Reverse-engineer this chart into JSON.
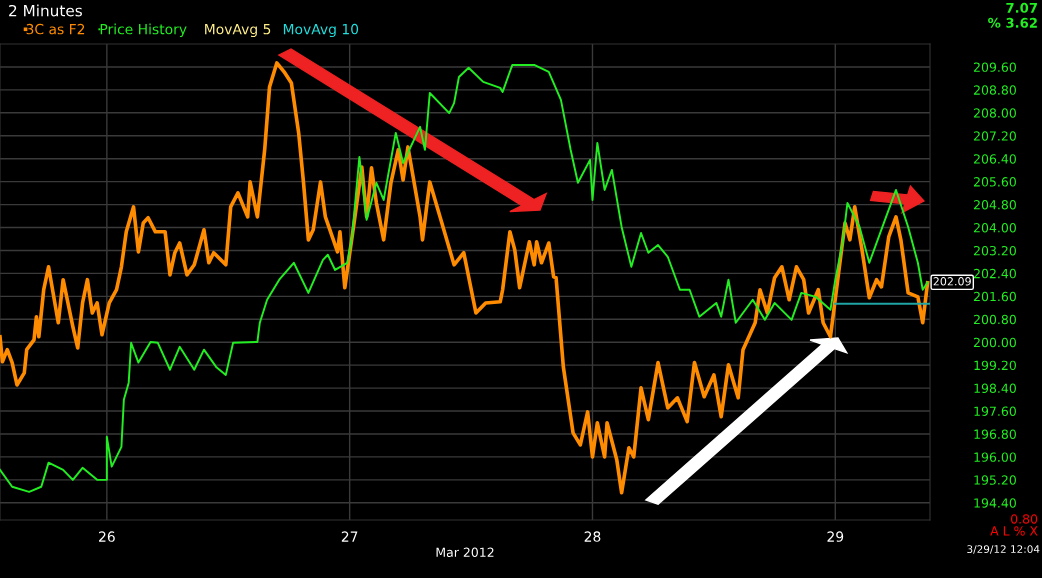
{
  "chart_data": {
    "type": "line",
    "xlabel": "Mar 2012",
    "legend": "top left",
    "grid": true,
    "marker": "none",
    "line_style": "solid",
    "xlim": [
      25.56,
      29.39
    ],
    "xticks": [
      26,
      27,
      28,
      29
    ],
    "ylim": [
      193.8,
      210.4
    ],
    "yticks": [
      {
        "value": 194.4,
        "label": "194.40"
      },
      {
        "value": 195.2,
        "label": "195.20"
      },
      {
        "value": 196.0,
        "label": "196.00"
      },
      {
        "value": 196.8,
        "label": "196.80"
      },
      {
        "value": 197.6,
        "label": "197.60"
      },
      {
        "value": 198.4,
        "label": "198.40"
      },
      {
        "value": 199.2,
        "label": "199.20"
      },
      {
        "value": 200.0,
        "label": "200.00"
      },
      {
        "value": 200.8,
        "label": "200.80"
      },
      {
        "value": 201.6,
        "label": "201.60"
      },
      {
        "value": 202.4,
        "label": "202.40"
      },
      {
        "value": 203.2,
        "label": "203.20"
      },
      {
        "value": 204.0,
        "label": "204.00"
      },
      {
        "value": 204.8,
        "label": "204.80"
      },
      {
        "value": 205.6,
        "label": "205.60"
      },
      {
        "value": 206.4,
        "label": "206.40"
      },
      {
        "value": 207.2,
        "label": "207.20"
      },
      {
        "value": 208.0,
        "label": "208.00"
      },
      {
        "value": 208.8,
        "label": "208.80"
      },
      {
        "value": 209.6,
        "label": "209.60"
      }
    ],
    "series": [
      {
        "name": "3C as F2",
        "color": "#ff8c00",
        "x": [
          25.56,
          25.57,
          25.59,
          25.61,
          25.63,
          25.66,
          25.67,
          25.7,
          25.71,
          25.72,
          25.74,
          25.76,
          25.8,
          25.82,
          25.86,
          25.88,
          25.9,
          25.92,
          25.94,
          25.96,
          25.98,
          26.01,
          26.04,
          26.06,
          26.08,
          26.11,
          26.13,
          26.15,
          26.17,
          26.2,
          26.24,
          26.26,
          26.28,
          26.3,
          26.33,
          26.36,
          26.4,
          26.42,
          26.44,
          26.49,
          26.51,
          26.54,
          26.58,
          26.59,
          26.62,
          26.65,
          26.67,
          26.7,
          26.73,
          26.76,
          26.79,
          26.81,
          26.83,
          26.85,
          26.88,
          26.9,
          26.95,
          26.96,
          26.98,
          27.02,
          27.05,
          27.07,
          27.09,
          27.11,
          27.14,
          27.17,
          27.2,
          27.22,
          27.24,
          27.29,
          27.3,
          27.33,
          27.37,
          27.43,
          27.47,
          27.49,
          27.52,
          27.56,
          27.62,
          27.63,
          27.66,
          27.68,
          27.7,
          27.74,
          27.76,
          27.77,
          27.79,
          27.82,
          27.84,
          27.85,
          27.88,
          27.92,
          27.95,
          27.98,
          28.0,
          28.02,
          28.05,
          28.06,
          28.1,
          28.12,
          28.15,
          28.17,
          28.2,
          28.23,
          28.27,
          28.31,
          28.35,
          28.39,
          28.42,
          28.46,
          28.5,
          28.53,
          28.56,
          28.6,
          28.62,
          28.67,
          28.69,
          28.72,
          28.75,
          28.78,
          28.81,
          28.84,
          28.87,
          28.89,
          28.93,
          28.95,
          28.98,
          29.01,
          29.04,
          29.06,
          29.08,
          29.11,
          29.14,
          29.17,
          29.19,
          29.22,
          29.25,
          29.27,
          29.3,
          29.34,
          29.36,
          29.38
        ],
        "values": [
          200.19,
          199.32,
          199.74,
          199.29,
          198.51,
          198.93,
          199.74,
          200.08,
          200.89,
          200.19,
          201.83,
          202.63,
          200.68,
          202.18,
          200.54,
          199.8,
          201.37,
          202.18,
          201.02,
          201.37,
          200.26,
          201.37,
          201.83,
          202.63,
          203.85,
          204.72,
          203.15,
          204.16,
          204.34,
          203.85,
          203.85,
          202.35,
          203.12,
          203.46,
          202.35,
          202.7,
          203.92,
          202.77,
          203.12,
          202.7,
          204.72,
          205.21,
          204.37,
          205.59,
          204.37,
          206.71,
          208.9,
          209.74,
          209.43,
          209.04,
          207.3,
          205.56,
          203.57,
          203.92,
          205.59,
          204.37,
          203.15,
          203.85,
          201.9,
          204.27,
          206.11,
          204.37,
          206.08,
          204.86,
          203.57,
          205.56,
          206.71,
          205.66,
          206.81,
          204.37,
          203.57,
          205.59,
          204.44,
          202.7,
          203.12,
          202.28,
          201.02,
          201.37,
          201.41,
          201.83,
          203.85,
          203.22,
          201.9,
          203.5,
          202.7,
          203.5,
          202.77,
          203.46,
          202.28,
          202.25,
          199.14,
          196.84,
          196.42,
          197.57,
          196.0,
          197.19,
          196.0,
          197.19,
          195.9,
          194.75,
          196.32,
          196.0,
          198.41,
          197.3,
          199.29,
          197.71,
          198.06,
          197.23,
          199.29,
          198.1,
          198.86,
          197.4,
          199.21,
          198.06,
          199.74,
          200.68,
          201.83,
          201.02,
          202.25,
          202.63,
          201.48,
          202.63,
          202.18,
          201.02,
          201.83,
          200.68,
          200.19,
          202.18,
          204.16,
          203.57,
          204.72,
          203.22,
          201.55,
          202.18,
          201.93,
          203.67,
          204.37,
          203.57,
          201.72,
          201.58,
          200.68,
          202.07
        ]
      },
      {
        "name": "Price History",
        "color": "#22ee22",
        "x": [
          25.56,
          25.61,
          25.68,
          25.73,
          25.76,
          25.82,
          25.86,
          25.9,
          25.96,
          26.0,
          26.0,
          26.02,
          26.06,
          26.07,
          26.09,
          26.1,
          26.13,
          26.18,
          26.21,
          26.26,
          26.3,
          26.36,
          26.4,
          26.45,
          26.49,
          26.52,
          26.62,
          26.63,
          26.66,
          26.71,
          26.77,
          26.83,
          26.89,
          26.91,
          26.94,
          26.99,
          27.01,
          27.02,
          27.04,
          27.07,
          27.11,
          27.14,
          27.19,
          27.22,
          27.29,
          27.31,
          27.33,
          27.41,
          27.43,
          27.45,
          27.49,
          27.55,
          27.62,
          27.63,
          27.67,
          27.76,
          27.82,
          27.87,
          27.91,
          27.94,
          27.99,
          28.0,
          28.02,
          28.05,
          28.08,
          28.12,
          28.16,
          28.2,
          28.23,
          28.27,
          28.31,
          28.36,
          28.4,
          28.44,
          28.51,
          28.53,
          28.56,
          28.59,
          28.66,
          28.71,
          28.75,
          28.82,
          28.86,
          28.92,
          28.98,
          29.0,
          29.03,
          29.05,
          29.1,
          29.14,
          29.2,
          29.25,
          29.3,
          29.34,
          29.36,
          29.38
        ],
        "values": [
          195.55,
          194.96,
          194.78,
          194.96,
          195.8,
          195.55,
          195.2,
          195.62,
          195.2,
          195.2,
          196.7,
          195.66,
          196.35,
          197.99,
          198.59,
          199.98,
          199.29,
          200.01,
          199.98,
          199.04,
          199.84,
          199.04,
          199.74,
          199.14,
          198.86,
          199.98,
          200.01,
          200.68,
          201.48,
          202.18,
          202.77,
          201.72,
          202.87,
          203.05,
          202.52,
          202.77,
          203.67,
          204.62,
          206.46,
          204.27,
          205.56,
          204.96,
          207.3,
          206.25,
          207.51,
          206.71,
          208.69,
          207.99,
          208.34,
          209.25,
          209.57,
          209.08,
          208.87,
          208.73,
          209.67,
          209.67,
          209.43,
          208.45,
          206.71,
          205.56,
          206.36,
          204.96,
          206.95,
          205.31,
          206.01,
          204.02,
          202.63,
          203.81,
          203.12,
          203.39,
          202.98,
          201.83,
          201.83,
          200.89,
          201.37,
          200.89,
          202.18,
          200.68,
          201.48,
          200.78,
          201.37,
          200.78,
          201.72,
          201.58,
          201.13,
          202.18,
          203.47,
          204.86,
          204.02,
          202.77,
          204.16,
          205.31,
          204.02,
          202.77,
          201.83,
          202.09
        ]
      },
      {
        "color": "#1fa5a5",
        "x": [
          29.0,
          29.39
        ],
        "values": [
          201.34,
          201.34
        ]
      }
    ],
    "annotations": [
      "MovAvg 5",
      "MovAvg 10",
      "2 Minutes",
      "7.07",
      "% 3.62",
      "0.80",
      "A L % X",
      "3/29/12 12:04",
      {
        "text": "202.09",
        "x": 29.39,
        "y": 202.09
      }
    ]
  }
}
